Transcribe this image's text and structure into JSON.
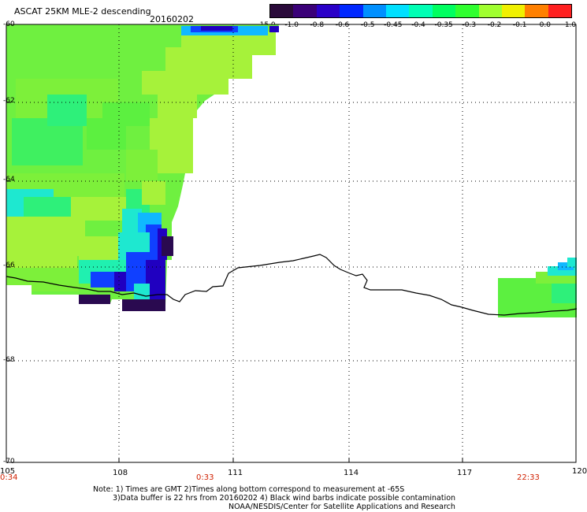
{
  "header": {
    "product": "ASCAT 25KM MLE-2 descending",
    "date": "20160202"
  },
  "colorbar": {
    "labels": [
      "-15.0",
      "-1.0",
      "-0.8",
      "-0.6",
      "-0.5",
      "-0.45",
      "-0.4",
      "-0.35",
      "-0.3",
      "-0.2",
      "-0.1",
      "0.0",
      "1.0"
    ],
    "colors": [
      "#2a0a3a",
      "#3a0078",
      "#2a00c8",
      "#0028ff",
      "#0090ff",
      "#00e0ff",
      "#00ffb4",
      "#00ff60",
      "#30ff30",
      "#a0ff30",
      "#f0f000",
      "#ff8000",
      "#ff2020"
    ]
  },
  "axes": {
    "lat_labels": [
      "-60",
      "-62",
      "-64",
      "-66",
      "-68",
      "-70"
    ],
    "lon_labels": [
      "105",
      "108",
      "111",
      "114",
      "117",
      "120"
    ],
    "time_labels": [
      "0:34",
      "0:33",
      "22:33"
    ]
  },
  "notes": {
    "line1": "Note: 1) Times are GMT 2)Times along bottom correspond to measurement at -65S",
    "line2": "3)Data buffer is 22 hrs from 20160202 4) Black wind barbs indicate possible contamination",
    "line3": "NOAA/NESDIS/Center for Satellite Applications and Research"
  },
  "colors": {
    "time_label": "#d02000",
    "grid": "#000000",
    "coast": "#000000"
  }
}
